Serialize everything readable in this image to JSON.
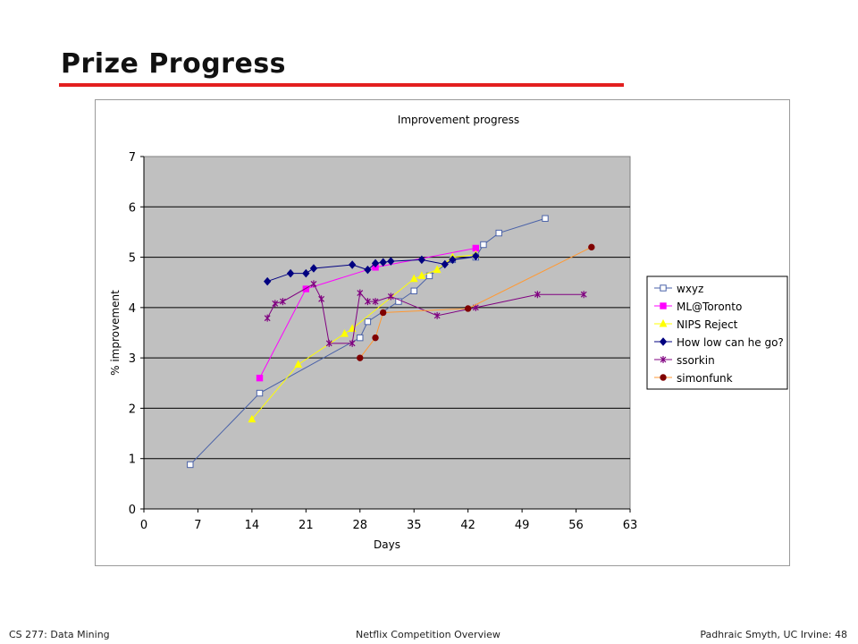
{
  "slide": {
    "title": "Prize Progress"
  },
  "footer": {
    "left": "CS 277: Data Mining",
    "center": "Netflix Competition Overview",
    "right": "Padhraic Smyth, UC Irvine: 48"
  },
  "colors": {
    "title_rule": "#e31f1f",
    "plot_background": "#c0c0c0"
  },
  "chart_data": {
    "type": "line",
    "title": "Improvement progress",
    "xlabel": "Days",
    "ylabel": "% improvement",
    "xlim": [
      0,
      63
    ],
    "ylim": [
      0,
      7
    ],
    "xticks": [
      0,
      7,
      14,
      21,
      28,
      35,
      42,
      49,
      56,
      63
    ],
    "yticks": [
      0,
      1,
      2,
      3,
      4,
      5,
      6,
      7
    ],
    "grid": "horizontal",
    "legend_position": "right",
    "series": [
      {
        "name": "wxyz",
        "color": "#4a62a8",
        "marker": "open-square",
        "points": [
          [
            6,
            0.88
          ],
          [
            15,
            2.3
          ],
          [
            28,
            3.4
          ],
          [
            29,
            3.72
          ],
          [
            33,
            4.12
          ],
          [
            35,
            4.33
          ],
          [
            37,
            4.63
          ],
          [
            40,
            4.95
          ],
          [
            43,
            5.0
          ],
          [
            44,
            5.25
          ],
          [
            46,
            5.48
          ],
          [
            52,
            5.77
          ]
        ]
      },
      {
        "name": "ML@Toronto",
        "color": "#ff00ff",
        "marker": "square",
        "points": [
          [
            15,
            2.6
          ],
          [
            21,
            4.37
          ],
          [
            30,
            4.8
          ],
          [
            43,
            5.18
          ]
        ]
      },
      {
        "name": "NIPS Reject",
        "color": "#ffff00",
        "marker": "triangle",
        "points": [
          [
            14,
            1.78
          ],
          [
            20,
            2.87
          ],
          [
            26,
            3.48
          ],
          [
            27,
            3.58
          ],
          [
            35,
            4.57
          ],
          [
            36,
            4.63
          ],
          [
            38,
            4.75
          ],
          [
            40,
            5.0
          ],
          [
            43,
            5.05
          ]
        ]
      },
      {
        "name": "How low can he go?",
        "color": "#000080",
        "marker": "diamond",
        "points": [
          [
            16,
            4.52
          ],
          [
            19,
            4.68
          ],
          [
            21,
            4.68
          ],
          [
            22,
            4.78
          ],
          [
            27,
            4.85
          ],
          [
            29,
            4.75
          ],
          [
            30,
            4.88
          ],
          [
            31,
            4.9
          ],
          [
            32,
            4.92
          ],
          [
            36,
            4.95
          ],
          [
            39,
            4.86
          ],
          [
            40,
            4.95
          ],
          [
            43,
            5.02
          ]
        ]
      },
      {
        "name": "ssorkin",
        "color": "#800080",
        "marker": "star",
        "points": [
          [
            16,
            3.79
          ],
          [
            17,
            4.08
          ],
          [
            18,
            4.12
          ],
          [
            22,
            4.47
          ],
          [
            23,
            4.17
          ],
          [
            24,
            3.29
          ],
          [
            27,
            3.29
          ],
          [
            28,
            4.29
          ],
          [
            29,
            4.12
          ],
          [
            30,
            4.12
          ],
          [
            32,
            4.22
          ],
          [
            38,
            3.84
          ],
          [
            43,
            4.0
          ],
          [
            51,
            4.26
          ],
          [
            57,
            4.26
          ]
        ]
      },
      {
        "name": "simonfunk",
        "color": "#800000",
        "marker": "circle",
        "line_color": "#ff9933",
        "points": [
          [
            28,
            3.0
          ],
          [
            30,
            3.4
          ],
          [
            31,
            3.9
          ],
          [
            42,
            3.98
          ],
          [
            58,
            5.2
          ]
        ]
      }
    ]
  }
}
